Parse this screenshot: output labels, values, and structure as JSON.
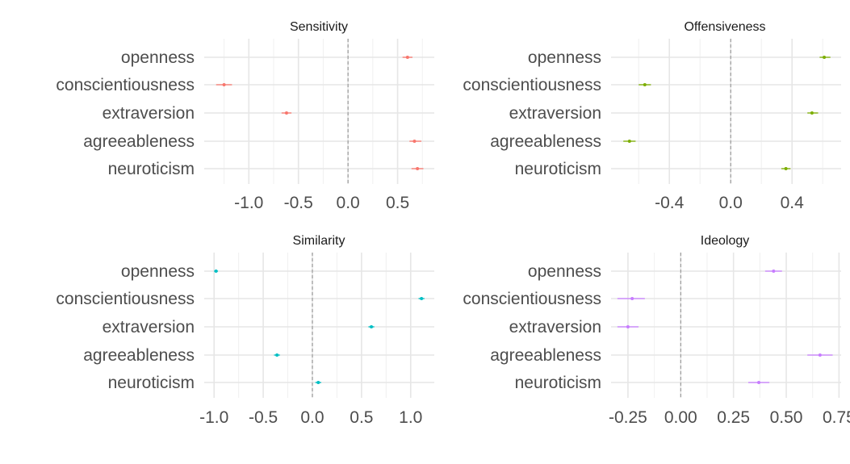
{
  "chart_data": [
    {
      "type": "scatter",
      "title": "Sensitivity",
      "color": "#F8766D",
      "categories": [
        "openness",
        "conscientiousness",
        "extraversion",
        "agreeableness",
        "neuroticism"
      ],
      "values": [
        0.6,
        -1.25,
        -0.62,
        0.67,
        0.7
      ],
      "ci_low": [
        0.55,
        -1.33,
        -0.67,
        0.62,
        0.64
      ],
      "ci_high": [
        0.65,
        -1.17,
        -0.57,
        0.74,
        0.76
      ],
      "xlim": [
        -1.45,
        0.87
      ],
      "xticks": [
        -1.0,
        -0.5,
        0.0,
        0.5
      ],
      "xtick_labels": [
        "-1.0",
        "-0.5",
        "0.0",
        "0.5"
      ],
      "reference_line": 0,
      "grid": true
    },
    {
      "type": "scatter",
      "title": "Offensiveness",
      "color": "#7CAE00",
      "categories": [
        "openness",
        "conscientiousness",
        "extraversion",
        "agreeableness",
        "neuroticism"
      ],
      "values": [
        0.61,
        -0.56,
        0.53,
        -0.66,
        0.36
      ],
      "ci_low": [
        0.58,
        -0.6,
        0.5,
        -0.7,
        0.33
      ],
      "ci_high": [
        0.65,
        -0.52,
        0.57,
        -0.62,
        0.39
      ],
      "xlim": [
        -0.78,
        0.72
      ],
      "xticks": [
        -0.4,
        0.0,
        0.4
      ],
      "xtick_labels": [
        "-0.4",
        "0.0",
        "0.4"
      ],
      "reference_line": 0,
      "grid": true
    },
    {
      "type": "scatter",
      "title": "Similarity",
      "color": "#00BFC4",
      "categories": [
        "openness",
        "conscientiousness",
        "extraversion",
        "agreeableness",
        "neuroticism"
      ],
      "values": [
        -0.98,
        1.11,
        0.6,
        -0.36,
        0.06
      ],
      "ci_low": [
        -1.0,
        1.08,
        0.57,
        -0.39,
        0.03
      ],
      "ci_high": [
        -0.96,
        1.14,
        0.63,
        -0.33,
        0.09
      ],
      "xlim": [
        -1.1,
        1.24
      ],
      "xticks": [
        -1.0,
        -0.5,
        0.0,
        0.5,
        1.0
      ],
      "xtick_labels": [
        "-1.0",
        "-0.5",
        "0.0",
        "0.5",
        "1.0"
      ],
      "reference_line": 0,
      "grid": true
    },
    {
      "type": "scatter",
      "title": "Ideology",
      "color": "#C77CFF",
      "categories": [
        "openness",
        "conscientiousness",
        "extraversion",
        "agreeableness",
        "neuroticism"
      ],
      "values": [
        0.44,
        -0.23,
        -0.25,
        0.66,
        0.37
      ],
      "ci_low": [
        0.4,
        -0.3,
        -0.3,
        0.6,
        0.32
      ],
      "ci_high": [
        0.48,
        -0.17,
        -0.2,
        0.72,
        0.42
      ],
      "xlim": [
        -0.33,
        0.76
      ],
      "xticks": [
        -0.25,
        0.0,
        0.25,
        0.5,
        0.75
      ],
      "xtick_labels": [
        "-0.25",
        "0.00",
        "0.25",
        "0.50",
        "0.75"
      ],
      "reference_line": 0,
      "grid": true
    }
  ]
}
